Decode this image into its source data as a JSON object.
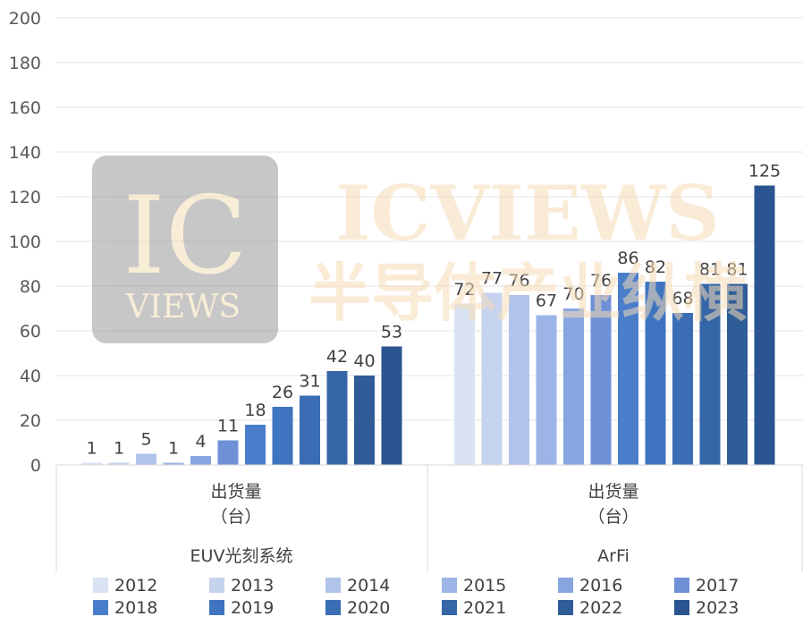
{
  "chart_data": {
    "type": "bar",
    "ylim": [
      0,
      200
    ],
    "yticks": [
      0,
      20,
      40,
      60,
      80,
      100,
      120,
      140,
      160,
      180,
      200
    ],
    "grid": true,
    "groups": [
      {
        "name": "EUV光刻系统",
        "measure_line1": "出货量",
        "measure_line2": "（台）",
        "bars": [
          {
            "year": "2012",
            "value": 1
          },
          {
            "year": "2013",
            "value": 1
          },
          {
            "year": "2014",
            "value": 5
          },
          {
            "year": "2015",
            "value": 1
          },
          {
            "year": "2016",
            "value": 4
          },
          {
            "year": "2017",
            "value": 11
          },
          {
            "year": "2018",
            "value": 18
          },
          {
            "year": "2019",
            "value": 26
          },
          {
            "year": "2020",
            "value": 31
          },
          {
            "year": "2021",
            "value": 42
          },
          {
            "year": "2022",
            "value": 40
          },
          {
            "year": "2023",
            "value": 53
          }
        ]
      },
      {
        "name": "ArFi",
        "measure_line1": "出货量",
        "measure_line2": "（台）",
        "bars": [
          {
            "year": "2012",
            "value": 72
          },
          {
            "year": "2013",
            "value": 77
          },
          {
            "year": "2014",
            "value": 76
          },
          {
            "year": "2015",
            "value": 67
          },
          {
            "year": "2016",
            "value": 70
          },
          {
            "year": "2017",
            "value": 76
          },
          {
            "year": "2018",
            "value": 86
          },
          {
            "year": "2019",
            "value": 82
          },
          {
            "year": "2020",
            "value": 68
          },
          {
            "year": "2021",
            "value": 81
          },
          {
            "year": "2022",
            "value": 81
          },
          {
            "year": "2023",
            "value": 125
          }
        ]
      }
    ],
    "legend": {
      "placement": "bottom",
      "entries": [
        "2012",
        "2013",
        "2014",
        "2015",
        "2016",
        "2017",
        "2018",
        "2019",
        "2020",
        "2021",
        "2022",
        "2023"
      ]
    },
    "colors": [
      "#dae3f3",
      "#c5d3ee",
      "#b0c4ea",
      "#9cb5e6",
      "#87a6e0",
      "#6d90d6",
      "#4a7ecb",
      "#3f75c0",
      "#3a6db4",
      "#3566a7",
      "#2f5d98",
      "#2a5590"
    ]
  },
  "watermark": {
    "logo_top": "IC",
    "logo_bottom": "VIEWS",
    "brand": "ICVIEWS",
    "tagline": "半导体产业纵横"
  }
}
